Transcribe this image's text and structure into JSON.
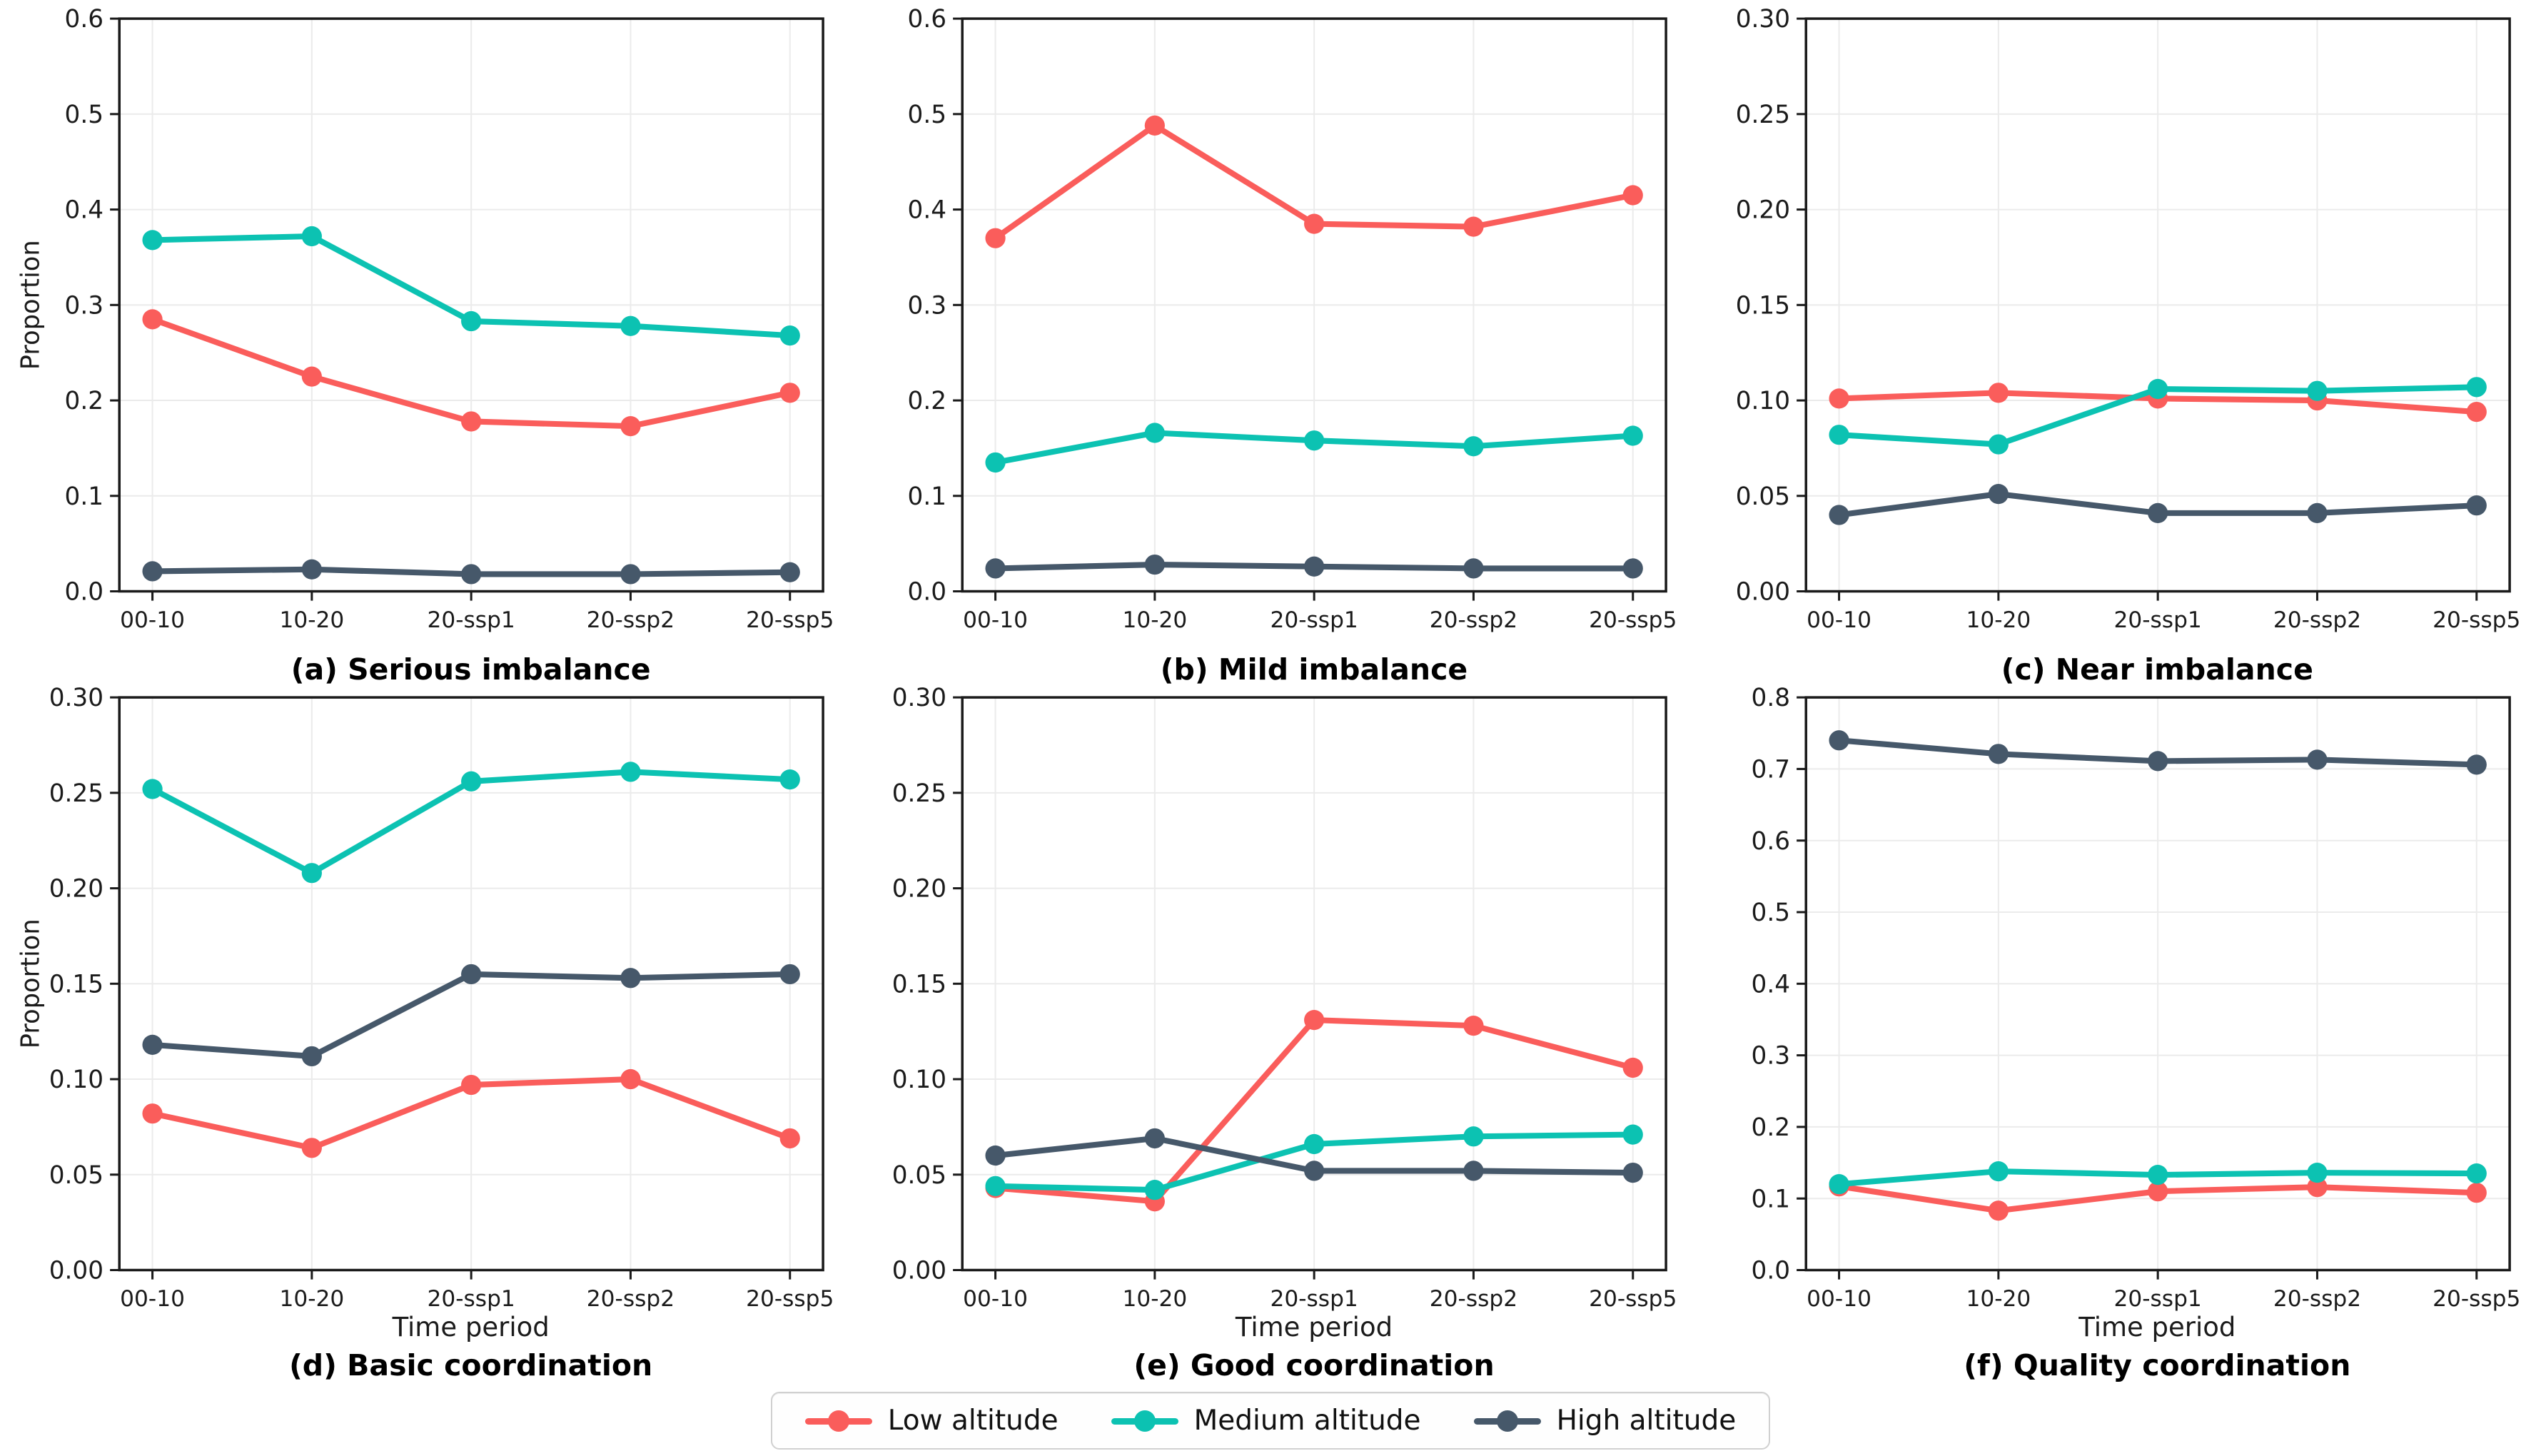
{
  "figure": {
    "ylabel": "Proportion",
    "xlabel": "Time period",
    "categories": [
      "00-10",
      "10-20",
      "20-ssp1",
      "20-ssp2",
      "20-ssp5"
    ],
    "colors": {
      "low": "#FA5D5B",
      "medium": "#0CC2B2",
      "high": "#46586A"
    },
    "grid_color": "#ebebeb",
    "spine_color": "#1b1b1b",
    "tick_label_color": "#1b1b1b"
  },
  "legend": {
    "items": [
      {
        "label": "Low altitude",
        "color": "low"
      },
      {
        "label": "Medium altitude",
        "color": "medium"
      },
      {
        "label": "High altitude",
        "color": "high"
      }
    ]
  },
  "chart_data": [
    {
      "id": "a",
      "type": "line",
      "caption": "(a) Serious imbalance",
      "ylim": [
        0,
        0.6
      ],
      "ytick_step": 0.1,
      "tick_decimals": 1,
      "show_ylabel": true,
      "show_xlabel": false,
      "grid": true,
      "series": [
        {
          "name": "Low altitude",
          "color": "low",
          "values": [
            0.285,
            0.225,
            0.178,
            0.173,
            0.208
          ]
        },
        {
          "name": "Medium altitude",
          "color": "medium",
          "values": [
            0.368,
            0.372,
            0.283,
            0.278,
            0.268
          ]
        },
        {
          "name": "High altitude",
          "color": "high",
          "values": [
            0.021,
            0.023,
            0.018,
            0.018,
            0.02
          ]
        }
      ]
    },
    {
      "id": "b",
      "type": "line",
      "caption": "(b) Mild imbalance",
      "ylim": [
        0,
        0.6
      ],
      "ytick_step": 0.1,
      "tick_decimals": 1,
      "show_ylabel": false,
      "show_xlabel": false,
      "grid": true,
      "series": [
        {
          "name": "Low altitude",
          "color": "low",
          "values": [
            0.37,
            0.488,
            0.385,
            0.382,
            0.415
          ]
        },
        {
          "name": "Medium altitude",
          "color": "medium",
          "values": [
            0.135,
            0.166,
            0.158,
            0.152,
            0.163
          ]
        },
        {
          "name": "High altitude",
          "color": "high",
          "values": [
            0.024,
            0.028,
            0.026,
            0.024,
            0.024
          ]
        }
      ]
    },
    {
      "id": "c",
      "type": "line",
      "caption": "(c) Near imbalance",
      "ylim": [
        0,
        0.3
      ],
      "ytick_step": 0.05,
      "tick_decimals": 2,
      "show_ylabel": false,
      "show_xlabel": false,
      "grid": true,
      "series": [
        {
          "name": "Low altitude",
          "color": "low",
          "values": [
            0.101,
            0.104,
            0.101,
            0.1,
            0.094
          ]
        },
        {
          "name": "Medium altitude",
          "color": "medium",
          "values": [
            0.082,
            0.077,
            0.106,
            0.105,
            0.107
          ]
        },
        {
          "name": "High altitude",
          "color": "high",
          "values": [
            0.04,
            0.051,
            0.041,
            0.041,
            0.045
          ]
        }
      ]
    },
    {
      "id": "d",
      "type": "line",
      "caption": "(d) Basic coordination",
      "ylim": [
        0,
        0.3
      ],
      "ytick_step": 0.05,
      "tick_decimals": 2,
      "show_ylabel": true,
      "show_xlabel": true,
      "grid": true,
      "series": [
        {
          "name": "Low altitude",
          "color": "low",
          "values": [
            0.082,
            0.064,
            0.097,
            0.1,
            0.069
          ]
        },
        {
          "name": "Medium altitude",
          "color": "medium",
          "values": [
            0.252,
            0.208,
            0.256,
            0.261,
            0.257
          ]
        },
        {
          "name": "High altitude",
          "color": "high",
          "values": [
            0.118,
            0.112,
            0.155,
            0.153,
            0.155
          ]
        }
      ]
    },
    {
      "id": "e",
      "type": "line",
      "caption": "(e) Good coordination",
      "ylim": [
        0,
        0.3
      ],
      "ytick_step": 0.05,
      "tick_decimals": 2,
      "show_ylabel": false,
      "show_xlabel": true,
      "grid": true,
      "series": [
        {
          "name": "Low altitude",
          "color": "low",
          "values": [
            0.043,
            0.036,
            0.131,
            0.128,
            0.106
          ]
        },
        {
          "name": "Medium altitude",
          "color": "medium",
          "values": [
            0.044,
            0.042,
            0.066,
            0.07,
            0.071
          ]
        },
        {
          "name": "High altitude",
          "color": "high",
          "values": [
            0.06,
            0.069,
            0.052,
            0.052,
            0.051
          ]
        }
      ]
    },
    {
      "id": "f",
      "type": "line",
      "caption": "(f) Quality coordination",
      "ylim": [
        0,
        0.8
      ],
      "ytick_step": 0.1,
      "tick_decimals": 1,
      "show_ylabel": false,
      "show_xlabel": true,
      "grid": true,
      "series": [
        {
          "name": "Low altitude",
          "color": "low",
          "values": [
            0.117,
            0.083,
            0.11,
            0.116,
            0.108
          ]
        },
        {
          "name": "Medium altitude",
          "color": "medium",
          "values": [
            0.12,
            0.138,
            0.133,
            0.136,
            0.135
          ]
        },
        {
          "name": "High altitude",
          "color": "high",
          "values": [
            0.74,
            0.721,
            0.711,
            0.713,
            0.706
          ]
        }
      ]
    }
  ]
}
